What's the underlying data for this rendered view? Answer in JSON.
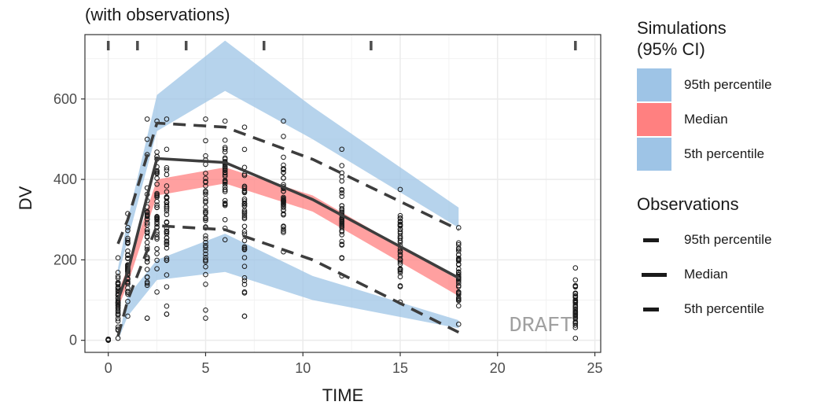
{
  "subtitle": "(with observations)",
  "watermark": "DRAFT",
  "colors": {
    "ci_blue": "#9ec4e6",
    "ci_red": "#ff8080",
    "line": "#3d3d3d",
    "point": "#1a1a1a"
  },
  "legend": {
    "sim_title_line1": "Simulations",
    "sim_title_line2": "(95% CI)",
    "sim_items": [
      {
        "label": "95th percentile",
        "color": "#9ec4e6"
      },
      {
        "label": "Median",
        "color": "#ff8080"
      },
      {
        "label": "5th percentile",
        "color": "#9ec4e6"
      }
    ],
    "obs_title": "Observations",
    "obs_items": [
      {
        "label": "95th percentile",
        "style": "dashed"
      },
      {
        "label": "Median",
        "style": "solid"
      },
      {
        "label": "5th percentile",
        "style": "dashed"
      }
    ]
  },
  "chart_data": {
    "type": "line",
    "xlabel": "TIME",
    "ylabel": "DV",
    "xlim": [
      -1.2,
      25.3
    ],
    "ylim": [
      -30,
      760
    ],
    "xticks": [
      0,
      5,
      10,
      15,
      20,
      25
    ],
    "yticks": [
      0,
      200,
      400,
      600
    ],
    "bin_marks": [
      0,
      1.5,
      4,
      8,
      13.5,
      24
    ],
    "grid": true,
    "bands": [
      {
        "name": "95th percentile",
        "x": [
          0.5,
          1,
          2.5,
          6,
          10.5,
          18
        ],
        "lower": [
          160,
          250,
          520,
          620,
          500,
          280
        ],
        "upper": [
          180,
          300,
          610,
          745,
          580,
          330
        ]
      },
      {
        "name": "Median",
        "x": [
          0.5,
          1,
          2.5,
          6,
          10.5,
          18
        ],
        "lower": [
          80,
          140,
          360,
          390,
          320,
          110
        ],
        "upper": [
          120,
          180,
          400,
          430,
          360,
          150
        ]
      },
      {
        "name": "5th percentile",
        "x": [
          0.5,
          1,
          2.5,
          6,
          10.5,
          18
        ],
        "lower": [
          0,
          60,
          150,
          170,
          100,
          30
        ],
        "upper": [
          0,
          110,
          200,
          265,
          160,
          50
        ]
      }
    ],
    "observed_percentiles": [
      {
        "name": "95th percentile",
        "style": "dashed",
        "x": [
          0.5,
          1,
          2.5,
          6,
          10.5,
          18
        ],
        "y": [
          240,
          300,
          540,
          530,
          450,
          275
        ]
      },
      {
        "name": "Median",
        "style": "solid",
        "x": [
          0.5,
          1,
          2.5,
          6,
          10.5,
          18
        ],
        "y": [
          100,
          170,
          452,
          442,
          350,
          155
        ]
      },
      {
        "name": "5th percentile",
        "style": "dashed",
        "x": [
          0.5,
          1,
          2.5,
          6,
          10.5,
          18
        ],
        "y": [
          10,
          100,
          285,
          275,
          200,
          20
        ]
      }
    ],
    "observations": {
      "times": [
        0,
        0.5,
        1,
        2,
        2.5,
        3,
        5,
        6,
        7,
        9,
        12,
        15,
        18,
        24
      ],
      "min": [
        0,
        5,
        60,
        55,
        120,
        65,
        55,
        250,
        60,
        220,
        160,
        95,
        40,
        5
      ],
      "max": [
        3,
        205,
        315,
        550,
        545,
        550,
        550,
        545,
        530,
        545,
        475,
        375,
        280,
        180
      ],
      "outliers_low": [
        [
          3,
          85
        ],
        [
          5,
          75
        ],
        [
          7,
          60
        ],
        [
          2,
          55
        ],
        [
          3,
          65
        ]
      ]
    }
  }
}
